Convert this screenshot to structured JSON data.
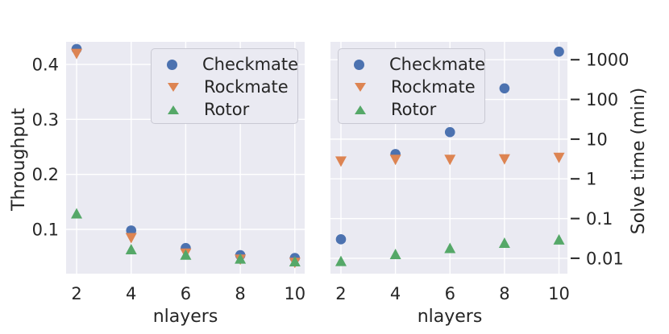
{
  "figure": {
    "background": "#ffffff",
    "axes_background": "#eaeaf2",
    "grid_color": "#ffffff",
    "text_color": "#262626",
    "legend_background": "#eaeaf2",
    "legend_border": "#c9c9d3"
  },
  "palette": {
    "checkmate": "#4c72b0",
    "rockmate": "#dd8452",
    "rotor": "#55a868"
  },
  "legend": {
    "items": [
      {
        "label": "Checkmate",
        "marker": "circle",
        "color": "#4c72b0"
      },
      {
        "label": "Rockmate",
        "marker": "triangle-down",
        "color": "#dd8452"
      },
      {
        "label": "Rotor",
        "marker": "triangle-up",
        "color": "#55a868"
      }
    ]
  },
  "chart_data": [
    {
      "type": "scatter",
      "title": "",
      "xlabel": "nlayers",
      "ylabel": "Throughput",
      "yscale": "linear",
      "legend_position": "upper-right",
      "grid": true,
      "x": [
        2,
        4,
        6,
        8,
        10
      ],
      "xtick_labels": [
        "2",
        "4",
        "6",
        "8",
        "10"
      ],
      "yticks": [
        {
          "v": 0.1,
          "label": "0.1"
        },
        {
          "v": 0.2,
          "label": "0.2"
        },
        {
          "v": 0.3,
          "label": "0.3"
        },
        {
          "v": 0.4,
          "label": "0.4"
        }
      ],
      "xlim": [
        1.615,
        10.36
      ],
      "ylim": [
        0.0195,
        0.441
      ],
      "series": [
        {
          "name": "Checkmate",
          "marker": "circle",
          "color": "#4c72b0",
          "values": [
            0.428,
            0.098,
            0.066,
            0.053,
            0.048
          ]
        },
        {
          "name": "Rockmate",
          "marker": "triangle-down",
          "color": "#dd8452",
          "values": [
            0.421,
            0.086,
            0.058,
            0.047,
            0.041
          ]
        },
        {
          "name": "Rotor",
          "marker": "triangle-up",
          "color": "#55a868",
          "values": [
            0.127,
            0.062,
            0.052,
            0.045,
            0.04
          ]
        }
      ]
    },
    {
      "type": "scatter",
      "title": "",
      "xlabel": "nlayers",
      "ylabel": "Solve time (min)",
      "ylabel_side": "right",
      "yscale": "log",
      "legend_position": "upper-left",
      "grid": true,
      "x": [
        2,
        4,
        6,
        8,
        10
      ],
      "xtick_labels": [
        "2",
        "4",
        "6",
        "8",
        "10"
      ],
      "yticks": [
        {
          "v": 1000,
          "label": "1000"
        },
        {
          "v": 100,
          "label": "100"
        },
        {
          "v": 10,
          "label": "10"
        },
        {
          "v": 1,
          "label": "1"
        },
        {
          "v": 0.1,
          "label": "0.1"
        },
        {
          "v": 0.01,
          "label": "0.01"
        }
      ],
      "xlim": [
        1.616,
        10.31
      ],
      "ylim": [
        0.0041,
        2820
      ],
      "series": [
        {
          "name": "Checkmate",
          "marker": "circle",
          "color": "#4c72b0",
          "values": [
            0.03,
            4.2,
            15,
            190,
            1600
          ]
        },
        {
          "name": "Rockmate",
          "marker": "triangle-down",
          "color": "#dd8452",
          "values": [
            2.9,
            3.2,
            3.2,
            3.3,
            3.6
          ]
        },
        {
          "name": "Rotor",
          "marker": "triangle-up",
          "color": "#55a868",
          "values": [
            0.008,
            0.012,
            0.017,
            0.023,
            0.028
          ]
        }
      ]
    }
  ]
}
